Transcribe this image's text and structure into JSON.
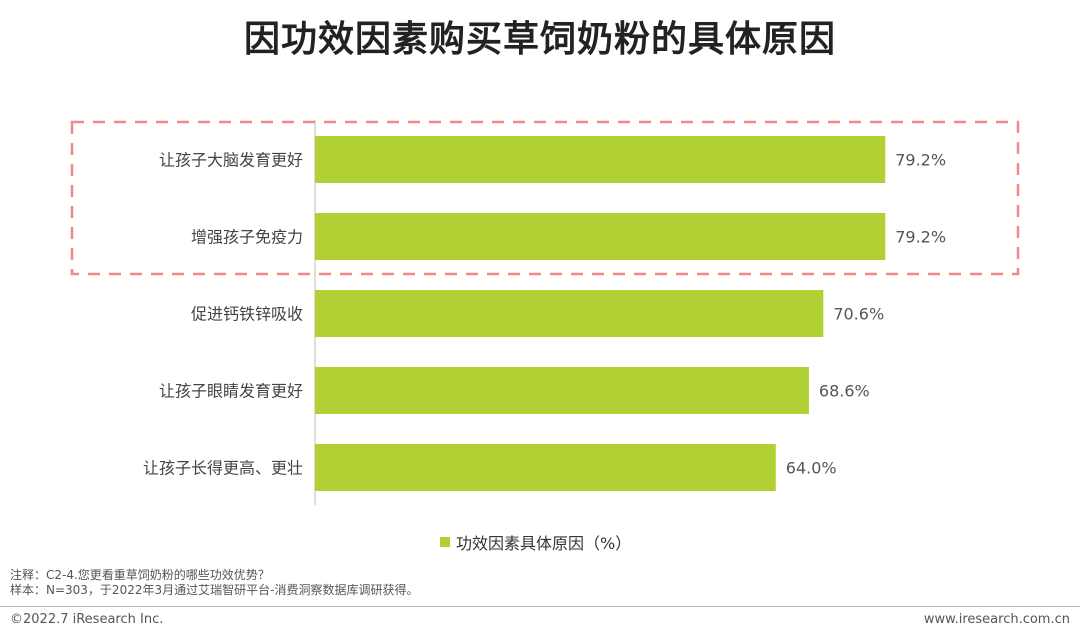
{
  "title": "因功效因素购买草饲奶粉的具体原因",
  "chart_data": {
    "type": "bar",
    "orientation": "horizontal",
    "categories": [
      "让孩子大脑发育更好",
      "增强孩子免疫力",
      "促进钙铁锌吸收",
      "让孩子眼睛发育更好",
      "让孩子长得更高、更壮"
    ],
    "series": [
      {
        "name": "功效因素具体原因（%）",
        "values": [
          79.2,
          79.2,
          70.6,
          68.6,
          64.0
        ]
      }
    ],
    "value_labels": [
      "79.2%",
      "79.2%",
      "70.6%",
      "68.6%",
      "64.0%"
    ],
    "xlim": [
      0,
      100
    ],
    "grid": false,
    "legend_position": "bottom",
    "highlight": {
      "categories": [
        "让孩子大脑发育更好",
        "增强孩子免疫力"
      ],
      "style": "dashed-box"
    }
  },
  "colors": {
    "bar": "#b1d033",
    "highlight_box": "#f08a8a"
  },
  "notes": {
    "line1": "注释：C2-4.您更看重草饲奶粉的哪些功效优势？",
    "line2": "样本：N=303，于2022年3月通过艾瑞智研平台-消费洞察数据库调研获得。"
  },
  "footer": {
    "copyright": "©2022.7 iResearch Inc.",
    "website": "www.iresearch.com.cn"
  }
}
